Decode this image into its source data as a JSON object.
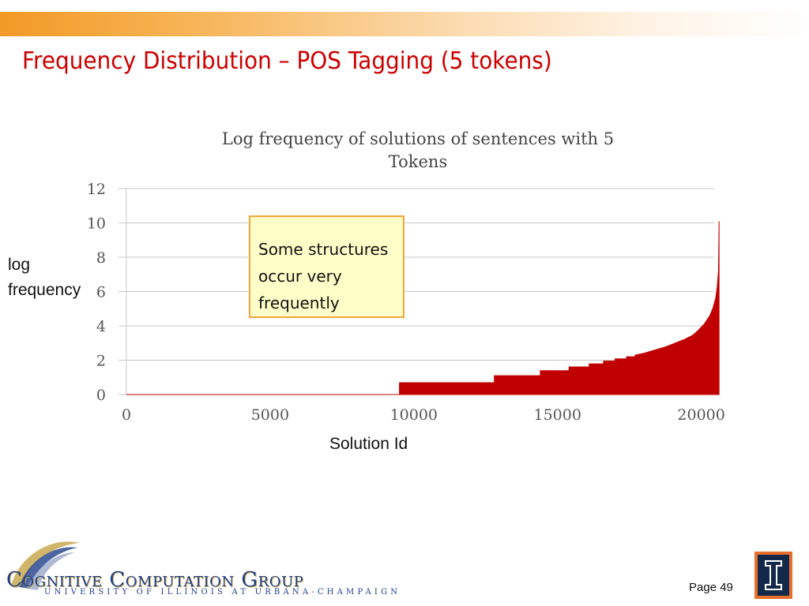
{
  "slide": {
    "title": "Frequency Distribution – POS Tagging (5 tokens)",
    "page": "Page 49"
  },
  "callout": {
    "text": "Some structures\noccur very\nfrequently"
  },
  "labels": {
    "y_side": "log\nfrequency",
    "x_below": "Solution Id"
  },
  "logo": {
    "main": "Cognitive Computation Group",
    "sub": "UNIVERSITY OF ILLINOIS AT URBANA-CHAMPAIGN"
  },
  "colors": {
    "title": "#cc0000",
    "bars": "#c00000",
    "band": "#f29a26",
    "callout_border": "#f5a53a",
    "callout_fill": "#fffec8",
    "logo_blue": "#1e3f8a",
    "uofi_orange": "#e8702a",
    "uofi_blue": "#13294b"
  },
  "chart_data": {
    "type": "area",
    "title": "Log frequency of solutions of sentences with 5 Tokens",
    "xlabel": "",
    "ylabel": "",
    "xlim": [
      0,
      21000
    ],
    "ylim": [
      0,
      12
    ],
    "x_ticks": [
      "0",
      "5000",
      "10000",
      "15000",
      "20000"
    ],
    "y_ticks": [
      "0",
      "2",
      "4",
      "6",
      "8",
      "10",
      "12"
    ],
    "grid": true,
    "series": [
      {
        "x": [
          0,
          9500,
          9500,
          12800,
          12800,
          14400,
          14400,
          15400,
          15400,
          16100,
          16100,
          16600,
          16600,
          17000,
          17000,
          17400,
          17400,
          17700,
          17700,
          18000,
          18200,
          18500,
          18800,
          19100,
          19400,
          19700,
          19900,
          20100,
          20300,
          20400,
          20500,
          20550,
          20580,
          20600,
          20610,
          20620,
          20620
        ],
        "y": [
          0,
          0,
          0.69,
          0.69,
          1.1,
          1.1,
          1.39,
          1.39,
          1.61,
          1.61,
          1.79,
          1.79,
          1.95,
          1.95,
          2.08,
          2.08,
          2.2,
          2.2,
          2.3,
          2.4,
          2.5,
          2.65,
          2.8,
          3.0,
          3.2,
          3.45,
          3.75,
          4.1,
          4.6,
          5.0,
          5.6,
          6.2,
          6.8,
          7.2,
          8.5,
          10.1,
          0
        ]
      }
    ]
  }
}
